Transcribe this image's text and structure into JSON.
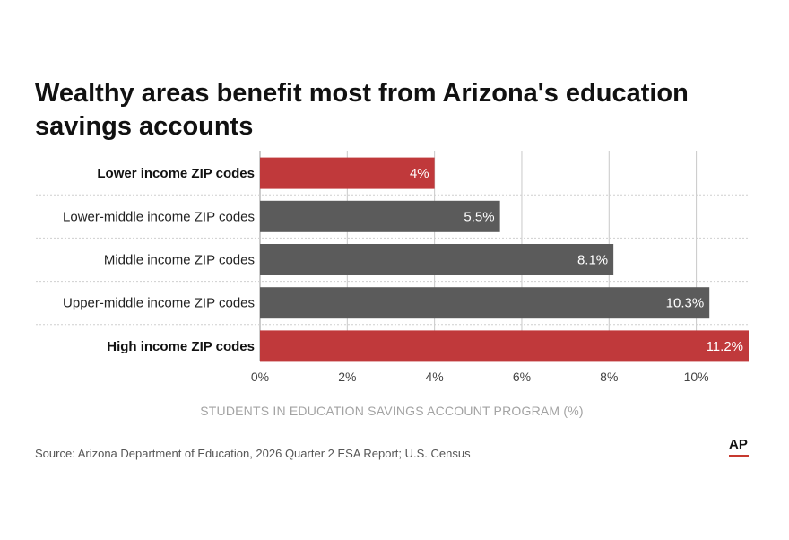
{
  "chart_data": {
    "type": "bar",
    "orientation": "horizontal",
    "title": "Wealthy areas benefit most from Arizona's education savings accounts",
    "xlabel": "STUDENTS IN EDUCATION SAVINGS ACCOUNT PROGRAM (%)",
    "ylabel": "",
    "categories": [
      "Lower income ZIP codes",
      "Lower-middle income ZIP codes",
      "Middle income ZIP codes",
      "Upper-middle income ZIP codes",
      "High income ZIP codes"
    ],
    "values": [
      4,
      5.5,
      8.1,
      10.3,
      11.2
    ],
    "value_labels": [
      "4%",
      "5.5%",
      "8.1%",
      "10.3%",
      "11.2%"
    ],
    "highlighted": [
      true,
      false,
      false,
      false,
      true
    ],
    "colors": {
      "highlight": "#c0393b",
      "default": "#5b5b5b"
    },
    "xlim": [
      0,
      11.2
    ],
    "xticks": [
      0,
      2,
      4,
      6,
      8,
      10
    ],
    "xtick_labels": [
      "0%",
      "2%",
      "4%",
      "6%",
      "8%",
      "10%"
    ],
    "grid": true
  },
  "source": "Source: Arizona Department of Education, 2026 Quarter 2 ESA Report; U.S. Census",
  "logo_text": "AP"
}
